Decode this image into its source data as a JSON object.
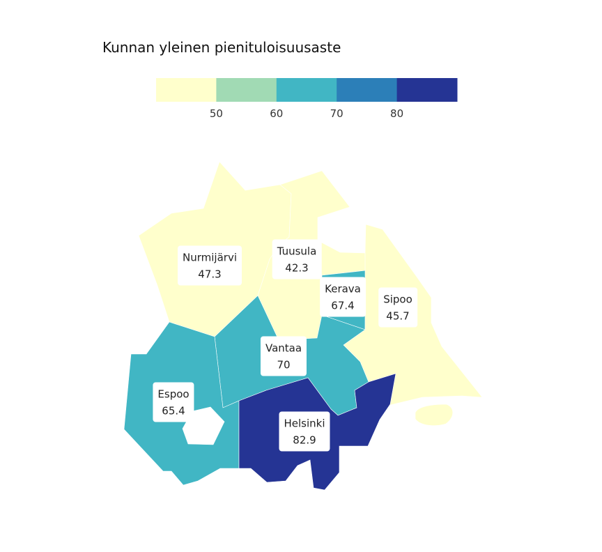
{
  "title": "Kunnan yleinen pienituloisuusaste",
  "legend": {
    "bins": [
      {
        "color": "#ffffcc"
      },
      {
        "color": "#a1dab4"
      },
      {
        "color": "#41b6c4"
      },
      {
        "color": "#2c7fb8"
      },
      {
        "color": "#253494"
      }
    ],
    "ticks": [
      "50",
      "60",
      "70",
      "80"
    ]
  },
  "regions": [
    {
      "name": "Nurmijärvi",
      "value": "47.3",
      "color": "#ffffcc"
    },
    {
      "name": "Tuusula",
      "value": "42.3",
      "color": "#ffffcc"
    },
    {
      "name": "Kerava",
      "value": "67.4",
      "color": "#41b6c4"
    },
    {
      "name": "Sipoo",
      "value": "45.7",
      "color": "#ffffcc"
    },
    {
      "name": "Vantaa",
      "value": "70",
      "color": "#41b6c4"
    },
    {
      "name": "Espoo",
      "value": "65.4",
      "color": "#41b6c4"
    },
    {
      "name": "Helsinki",
      "value": "82.9",
      "color": "#253494"
    }
  ]
}
